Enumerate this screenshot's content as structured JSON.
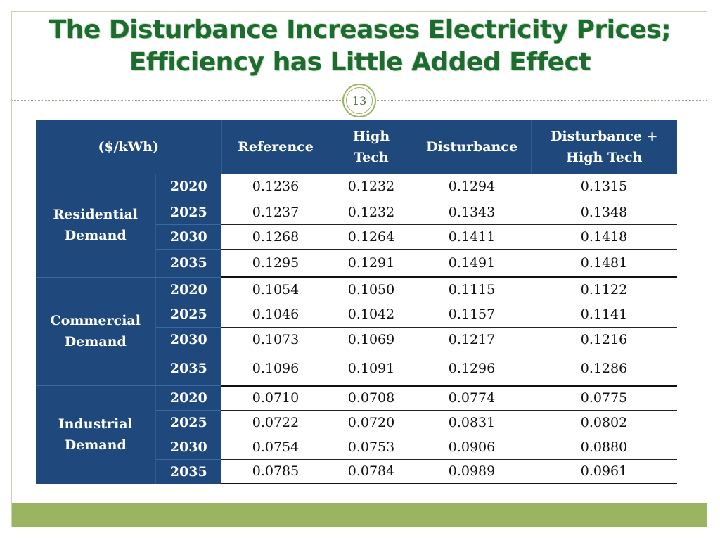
{
  "slide": {
    "title": "The Disturbance Increases Electricity Prices; Efficiency has Little Added Effect",
    "page_number": "13",
    "colors": {
      "title_green": "#1e6b2f",
      "header_blue": "#1f497d",
      "accent_green": "#9bb462"
    }
  },
  "table": {
    "unit_header": "($/kWh)",
    "columns": [
      "Reference",
      "High Tech",
      "Disturbance",
      "Disturbance + High Tech"
    ],
    "groups": [
      {
        "label": "Residential Demand",
        "rows": [
          {
            "year": "2020",
            "values": [
              "0.1236",
              "0.1232",
              "0.1294",
              "0.1315"
            ]
          },
          {
            "year": "2025",
            "values": [
              "0.1237",
              "0.1232",
              "0.1343",
              "0.1348"
            ]
          },
          {
            "year": "2030",
            "values": [
              "0.1268",
              "0.1264",
              "0.1411",
              "0.1418"
            ]
          },
          {
            "year": "2035",
            "values": [
              "0.1295",
              "0.1291",
              "0.1491",
              "0.1481"
            ]
          }
        ]
      },
      {
        "label": "Commercial Demand",
        "rows": [
          {
            "year": "2020",
            "values": [
              "0.1054",
              "0.1050",
              "0.1115",
              "0.1122"
            ]
          },
          {
            "year": "2025",
            "values": [
              "0.1046",
              "0.1042",
              "0.1157",
              "0.1141"
            ]
          },
          {
            "year": "2030",
            "values": [
              "0.1073",
              "0.1069",
              "0.1217",
              "0.1216"
            ]
          },
          {
            "year": "2035",
            "values": [
              "0.1096",
              "0.1091",
              "0.1296",
              "0.1286"
            ]
          }
        ]
      },
      {
        "label": "Industrial Demand",
        "rows": [
          {
            "year": "2020",
            "values": [
              "0.0710",
              "0.0708",
              "0.0774",
              "0.0775"
            ]
          },
          {
            "year": "2025",
            "values": [
              "0.0722",
              "0.0720",
              "0.0831",
              "0.0802"
            ]
          },
          {
            "year": "2030",
            "values": [
              "0.0754",
              "0.0753",
              "0.0906",
              "0.0880"
            ]
          },
          {
            "year": "2035",
            "values": [
              "0.0785",
              "0.0784",
              "0.0989",
              "0.0961"
            ]
          }
        ]
      }
    ]
  }
}
